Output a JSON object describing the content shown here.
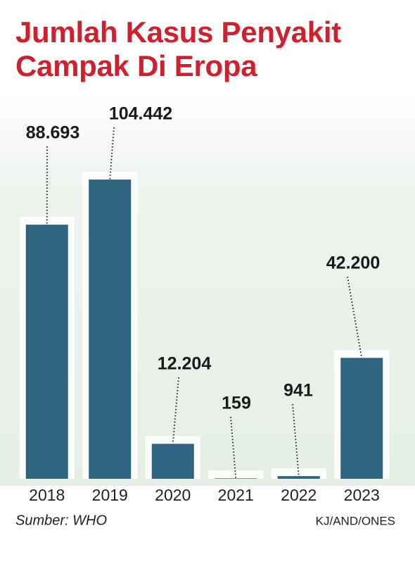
{
  "chart_data": {
    "type": "bar",
    "title": "Jumlah Kasus Penyakit Campak Di Eropa",
    "categories": [
      "2018",
      "2019",
      "2020",
      "2021",
      "2022",
      "2023"
    ],
    "values": [
      88693,
      104442,
      12204,
      159,
      941,
      42200
    ],
    "value_labels": [
      "88.693",
      "104.442",
      "12.204",
      "159",
      "941",
      "42.200"
    ],
    "color": "#2e6480",
    "source": "Sumber: WHO",
    "credit": "KJ/AND/ONES"
  }
}
